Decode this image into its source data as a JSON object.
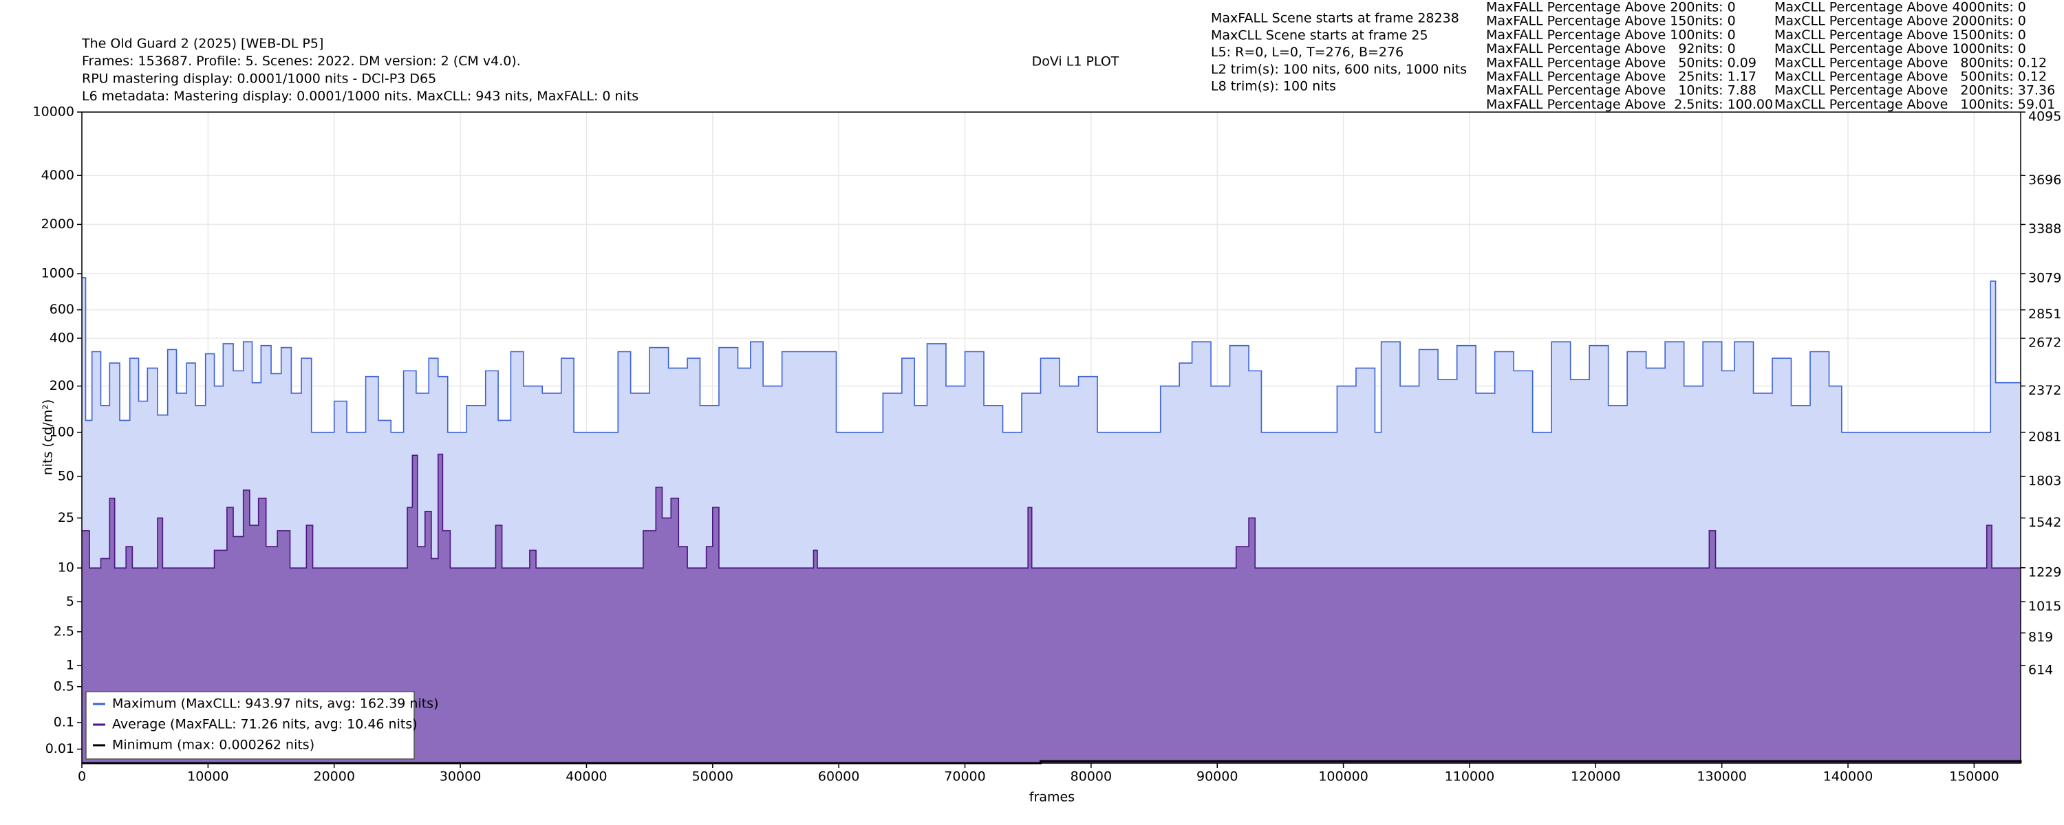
{
  "chart_data": {
    "type": "line",
    "title": "DoVi L1 PLOT",
    "info_left": [
      "The Old Guard 2 (2025) [WEB-DL P5]",
      "Frames: 153687. Profile: 5. Scenes: 2022. DM version: 2 (CM v4.0).",
      "RPU mastering display: 0.0001/1000 nits - DCI-P3 D65",
      "L6 metadata: Mastering display: 0.0001/1000 nits. MaxCLL: 943 nits, MaxFALL: 0 nits"
    ],
    "info_mid": [
      "MaxFALL Scene starts at frame 28238",
      "MaxCLL Scene starts at frame 25",
      "L5: R=0, L=0, T=276, B=276",
      "L2 trim(s): 100 nits, 600 nits, 1000 nits",
      "L8 trim(s): 100 nits"
    ],
    "stats_maxfall": [
      "MaxFALL Percentage Above 200nits: 0",
      "MaxFALL Percentage Above 150nits: 0",
      "MaxFALL Percentage Above 100nits: 0",
      "MaxFALL Percentage Above   92nits: 0",
      "MaxFALL Percentage Above   50nits: 0.09",
      "MaxFALL Percentage Above   25nits: 1.17",
      "MaxFALL Percentage Above   10nits: 7.88",
      "MaxFALL Percentage Above  2.5nits: 100.00"
    ],
    "stats_maxcll": [
      "MaxCLL Percentage Above 4000nits: 0",
      "MaxCLL Percentage Above 2000nits: 0",
      "MaxCLL Percentage Above 1500nits: 0",
      "MaxCLL Percentage Above 1000nits: 0",
      "MaxCLL Percentage Above   800nits: 0.12",
      "MaxCLL Percentage Above   500nits: 0.12",
      "MaxCLL Percentage Above   200nits: 37.36",
      "MaxCLL Percentage Above   100nits: 59.01"
    ],
    "xlabel": "frames",
    "ylabel": "nits (cd/m²)",
    "scale": "pq",
    "grid": true,
    "legend": "lower left",
    "xlim": [
      0,
      153687
    ],
    "xticks": [
      0,
      10000,
      20000,
      30000,
      40000,
      50000,
      60000,
      70000,
      80000,
      90000,
      100000,
      110000,
      120000,
      130000,
      140000,
      150000
    ],
    "ylim": [
      0,
      10000
    ],
    "yticks": [
      0.01,
      0.1,
      0.5,
      1,
      2.5,
      5,
      10,
      25,
      50,
      100,
      200,
      400,
      600,
      1000,
      2000,
      4000,
      10000
    ],
    "y2lim": [
      0,
      4095
    ],
    "y2ticks": [
      614,
      819,
      1015,
      1229,
      1542,
      1803,
      2081,
      2372,
      2672,
      2851,
      3079,
      3388,
      3696,
      4095
    ],
    "series": [
      {
        "name": "Maximum (MaxCLL: 943.97 nits, avg: 162.39 nits)",
        "color": "#3b62d6",
        "fill": "#d0d9f7",
        "x": [
          0,
          300,
          800,
          1500,
          2200,
          3000,
          3800,
          4500,
          5200,
          6000,
          6800,
          7500,
          8300,
          9000,
          9800,
          10500,
          11200,
          12000,
          12800,
          13500,
          14200,
          15000,
          15800,
          16600,
          17400,
          18200,
          20000,
          21000,
          22500,
          23500,
          24500,
          25500,
          26500,
          27500,
          28238,
          29000,
          30500,
          32000,
          33000,
          34000,
          35000,
          36500,
          38000,
          39000,
          41000,
          42500,
          43500,
          45000,
          46500,
          48000,
          49000,
          50500,
          52000,
          53000,
          54000,
          55500,
          57500,
          59800,
          62000,
          63500,
          65000,
          66000,
          67000,
          68500,
          70000,
          71500,
          73000,
          74500,
          76000,
          77500,
          79000,
          80500,
          84000,
          85500,
          87000,
          88000,
          89500,
          91000,
          92500,
          93500,
          98000,
          99500,
          101000,
          102500,
          103000,
          104500,
          106000,
          107500,
          109000,
          110500,
          112000,
          113500,
          115000,
          116500,
          118000,
          119500,
          121000,
          122500,
          124000,
          125500,
          127000,
          128500,
          130000,
          131000,
          132500,
          134000,
          135500,
          137000,
          138500,
          139500,
          151000,
          151300,
          151700,
          153687
        ],
        "values": [
          943.97,
          120,
          330,
          150,
          280,
          120,
          300,
          160,
          260,
          130,
          340,
          180,
          280,
          150,
          320,
          200,
          370,
          250,
          380,
          210,
          360,
          240,
          350,
          180,
          300,
          100,
          160,
          100,
          230,
          120,
          100,
          250,
          180,
          300,
          230,
          100,
          150,
          250,
          120,
          330,
          200,
          180,
          300,
          100,
          100,
          330,
          180,
          350,
          260,
          300,
          150,
          350,
          260,
          380,
          200,
          330,
          330,
          100,
          100,
          180,
          300,
          150,
          370,
          200,
          330,
          150,
          100,
          180,
          300,
          200,
          230,
          100,
          100,
          200,
          280,
          380,
          200,
          360,
          250,
          100,
          100,
          200,
          260,
          100,
          380,
          200,
          340,
          220,
          360,
          180,
          330,
          250,
          100,
          380,
          220,
          360,
          150,
          330,
          260,
          380,
          200,
          380,
          250,
          380,
          180,
          300,
          150,
          330,
          200,
          100,
          100,
          900,
          210,
          205
        ]
      },
      {
        "name": "Average (MaxFALL: 71.26 nits, avg: 10.46 nits)",
        "color": "#4b1482",
        "fill": "#8e6cbd",
        "x": [
          0,
          600,
          1500,
          2200,
          2600,
          3500,
          4000,
          6000,
          6400,
          10500,
          11500,
          12000,
          12800,
          13300,
          14000,
          14600,
          15500,
          16500,
          17800,
          18300,
          25800,
          26200,
          26600,
          27200,
          27700,
          28238,
          28600,
          29200,
          32800,
          33300,
          35500,
          36000,
          44500,
          45500,
          46000,
          46700,
          47300,
          48000,
          49500,
          50000,
          50500,
          58000,
          58300,
          75000,
          75300,
          91500,
          92500,
          93000,
          129000,
          129500,
          151000,
          151400,
          153687
        ],
        "values": [
          20,
          10,
          12,
          35,
          10,
          15,
          10,
          25,
          10,
          14,
          30,
          18,
          40,
          22,
          35,
          15,
          20,
          10,
          22,
          10,
          30,
          70,
          15,
          28,
          12,
          71.26,
          20,
          10,
          22,
          10,
          14,
          10,
          20,
          42,
          25,
          35,
          15,
          10,
          15,
          30,
          10,
          14,
          10,
          30,
          10,
          15,
          25,
          10,
          20,
          10,
          22,
          10,
          10
        ]
      },
      {
        "name": "Minimum (max: 0.000262 nits)",
        "color": "#000000",
        "x": [
          0,
          76000,
          153687
        ],
        "values": [
          0,
          0.000262,
          0
        ]
      }
    ]
  }
}
